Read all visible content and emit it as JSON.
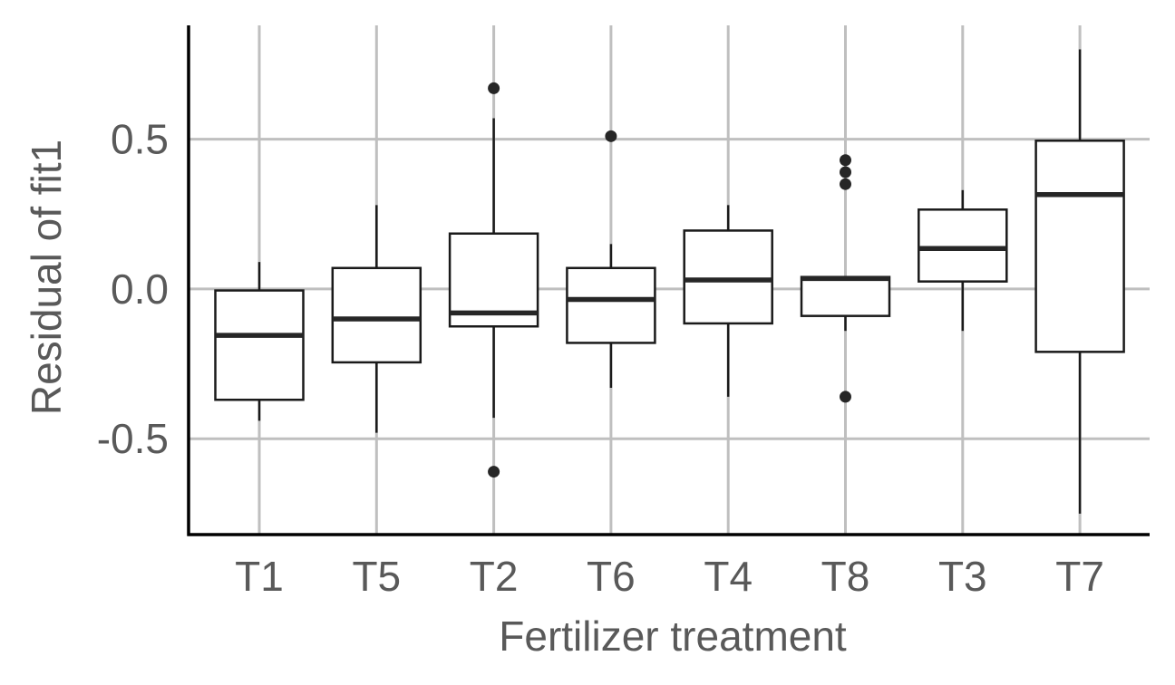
{
  "chart_data": {
    "type": "boxplot",
    "title": "",
    "xlabel": "Fertilizer treatment",
    "ylabel": "Residual of fit1",
    "ylim": [
      -0.82,
      0.88
    ],
    "yticks": [
      -0.5,
      0.0,
      0.5
    ],
    "ytick_labels": [
      "-0.5",
      "0.0",
      "0.5"
    ],
    "grid": true,
    "legend": "none",
    "colors": {
      "box_stroke": "#1a1a1a",
      "median": "#262626",
      "grid": "#bfbfbf",
      "axis": "#000000",
      "text": "#595959"
    },
    "categories": [
      "T1",
      "T5",
      "T2",
      "T6",
      "T4",
      "T8",
      "T3",
      "T7"
    ],
    "boxes": [
      {
        "label": "T1",
        "whisker_low": -0.44,
        "q1": -0.37,
        "median": -0.155,
        "q3": -0.005,
        "whisker_high": 0.09,
        "outliers": []
      },
      {
        "label": "T5",
        "whisker_low": -0.48,
        "q1": -0.245,
        "median": -0.1,
        "q3": 0.07,
        "whisker_high": 0.28,
        "outliers": []
      },
      {
        "label": "T2",
        "whisker_low": -0.43,
        "q1": -0.125,
        "median": -0.08,
        "q3": 0.185,
        "whisker_high": 0.57,
        "outliers": [
          0.67,
          -0.61
        ]
      },
      {
        "label": "T6",
        "whisker_low": -0.33,
        "q1": -0.18,
        "median": -0.035,
        "q3": 0.07,
        "whisker_high": 0.15,
        "outliers": [
          0.51
        ]
      },
      {
        "label": "T4",
        "whisker_low": -0.36,
        "q1": -0.115,
        "median": 0.03,
        "q3": 0.195,
        "whisker_high": 0.28,
        "outliers": []
      },
      {
        "label": "T8",
        "whisker_low": -0.14,
        "q1": -0.09,
        "median": 0.035,
        "q3": 0.04,
        "whisker_high": 0.04,
        "outliers": [
          0.43,
          0.39,
          0.35,
          -0.36
        ]
      },
      {
        "label": "T3",
        "whisker_low": -0.14,
        "q1": 0.025,
        "median": 0.135,
        "q3": 0.265,
        "whisker_high": 0.33,
        "outliers": []
      },
      {
        "label": "T7",
        "whisker_low": -0.75,
        "q1": -0.21,
        "median": 0.315,
        "q3": 0.495,
        "whisker_high": 0.8,
        "outliers": []
      }
    ]
  }
}
